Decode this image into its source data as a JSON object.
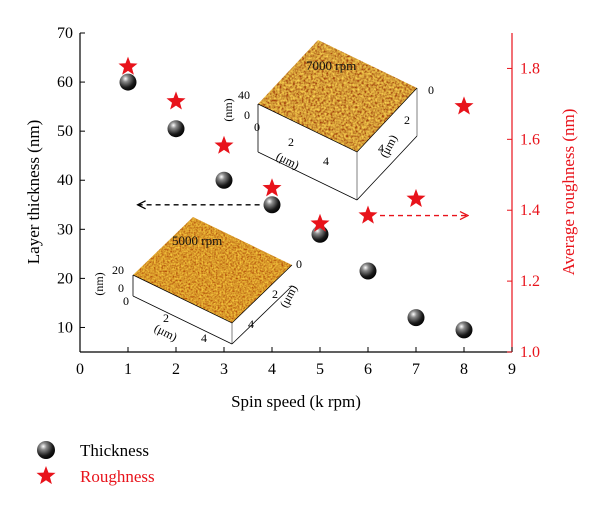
{
  "chart_data": {
    "type": "scatter",
    "xlabel": "Spin speed (k rpm)",
    "xlim": [
      0,
      9
    ],
    "xticks": [
      0,
      1,
      2,
      3,
      4,
      5,
      6,
      7,
      8,
      9
    ],
    "y_left": {
      "label": "Layer thickness (nm)",
      "lim": [
        5,
        70
      ],
      "ticks": [
        10,
        20,
        30,
        40,
        50,
        60,
        70
      ]
    },
    "y_right": {
      "label": "Average roughness (nm)",
      "lim": [
        1.0,
        1.9
      ],
      "ticks": [
        "1.0",
        "1.2",
        "1.4",
        "1.6",
        "1.8"
      ]
    },
    "series": [
      {
        "name": "Thickness",
        "axis": "left",
        "marker": "sphere",
        "color": "#000000",
        "x": [
          1,
          2,
          3,
          4,
          5,
          6,
          7,
          8
        ],
        "y": [
          60,
          50.5,
          40,
          35,
          29,
          21.5,
          12,
          9.5
        ]
      },
      {
        "name": "Roughness",
        "axis": "right",
        "marker": "star",
        "color": "#e8131b",
        "x": [
          1,
          2,
          3,
          4,
          5,
          6,
          7,
          8
        ],
        "y": [
          1.805,
          1.707,
          1.582,
          1.462,
          1.362,
          1.385,
          1.432,
          1.693
        ]
      }
    ],
    "annotations": {
      "arrow_left": {
        "x_from": 4,
        "x_to": 1.2,
        "y": 35,
        "axis": "left",
        "color": "#000000"
      },
      "arrow_right": {
        "x_from": 6,
        "x_to": 8,
        "y": 1.385,
        "axis": "right",
        "color": "#e8131b"
      }
    },
    "insets": [
      {
        "title": "7000 rpm",
        "z_label": "(nm)",
        "z_ticks": [
          "40",
          "0"
        ],
        "um_label": "(μm)",
        "x_ticks": [
          "0",
          "2",
          "4"
        ],
        "y_ticks": [
          "0",
          "2",
          "4"
        ]
      },
      {
        "title": "5000 rpm",
        "z_label": "(nm)",
        "z_ticks": [
          "20",
          "0"
        ],
        "um_label": "(μm)",
        "x_ticks": [
          "0",
          "2",
          "4"
        ],
        "y_ticks": [
          "0",
          "2",
          "4"
        ]
      }
    ],
    "legend": {
      "placement": "bottom-left"
    }
  }
}
